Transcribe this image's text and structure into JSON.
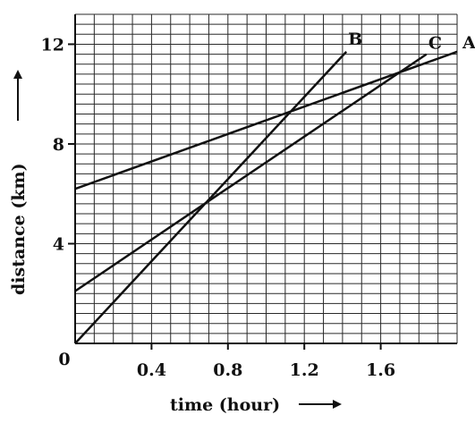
{
  "chart_data": {
    "type": "line",
    "xlabel": "time (hour)",
    "ylabel": "distance (km)",
    "xlim": [
      0,
      2.0
    ],
    "ylim": [
      0,
      13.2
    ],
    "x_ticks": [
      0.4,
      0.8,
      1.2,
      1.6
    ],
    "x_tick_labels": [
      "0.4",
      "0.8",
      "1.2",
      "1.6"
    ],
    "y_ticks": [
      4,
      8,
      12
    ],
    "y_tick_labels": [
      "4",
      "8",
      "12"
    ],
    "origin_label": "0",
    "grid": true,
    "series": [
      {
        "name": "A",
        "x": [
          0,
          2.0
        ],
        "y": [
          6.2,
          11.7
        ]
      },
      {
        "name": "B",
        "x": [
          0,
          1.42
        ],
        "y": [
          0,
          11.7
        ]
      },
      {
        "name": "C",
        "x": [
          0,
          1.84
        ],
        "y": [
          2.1,
          11.6
        ]
      }
    ]
  }
}
